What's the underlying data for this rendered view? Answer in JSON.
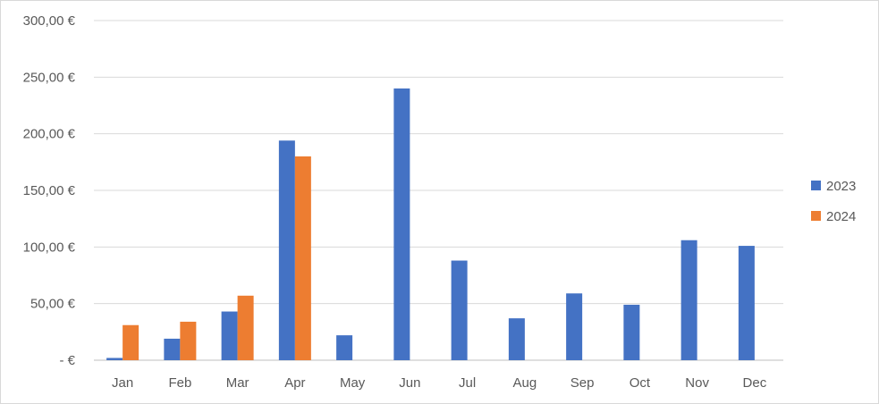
{
  "chart_data": {
    "type": "bar",
    "categories": [
      "Jan",
      "Feb",
      "Mar",
      "Apr",
      "May",
      "Jun",
      "Jul",
      "Aug",
      "Sep",
      "Oct",
      "Nov",
      "Dec"
    ],
    "series": [
      {
        "name": "2023",
        "color": "#4472c4",
        "values": [
          2,
          19,
          43,
          194,
          22,
          240,
          88,
          37,
          59,
          49,
          106,
          101
        ]
      },
      {
        "name": "2024",
        "color": "#ed7d31",
        "values": [
          31,
          34,
          57,
          180,
          null,
          null,
          null,
          null,
          null,
          null,
          null,
          null
        ]
      }
    ],
    "y_ticks": [
      "-  €",
      "50,00 €",
      "100,00 €",
      "150,00 €",
      "200,00 €",
      "250,00 €",
      "300,00 €"
    ],
    "ylim": [
      0,
      300
    ],
    "ystep": 50,
    "grid": true,
    "legend_position": "right",
    "title": "",
    "xlabel": "",
    "ylabel": ""
  }
}
